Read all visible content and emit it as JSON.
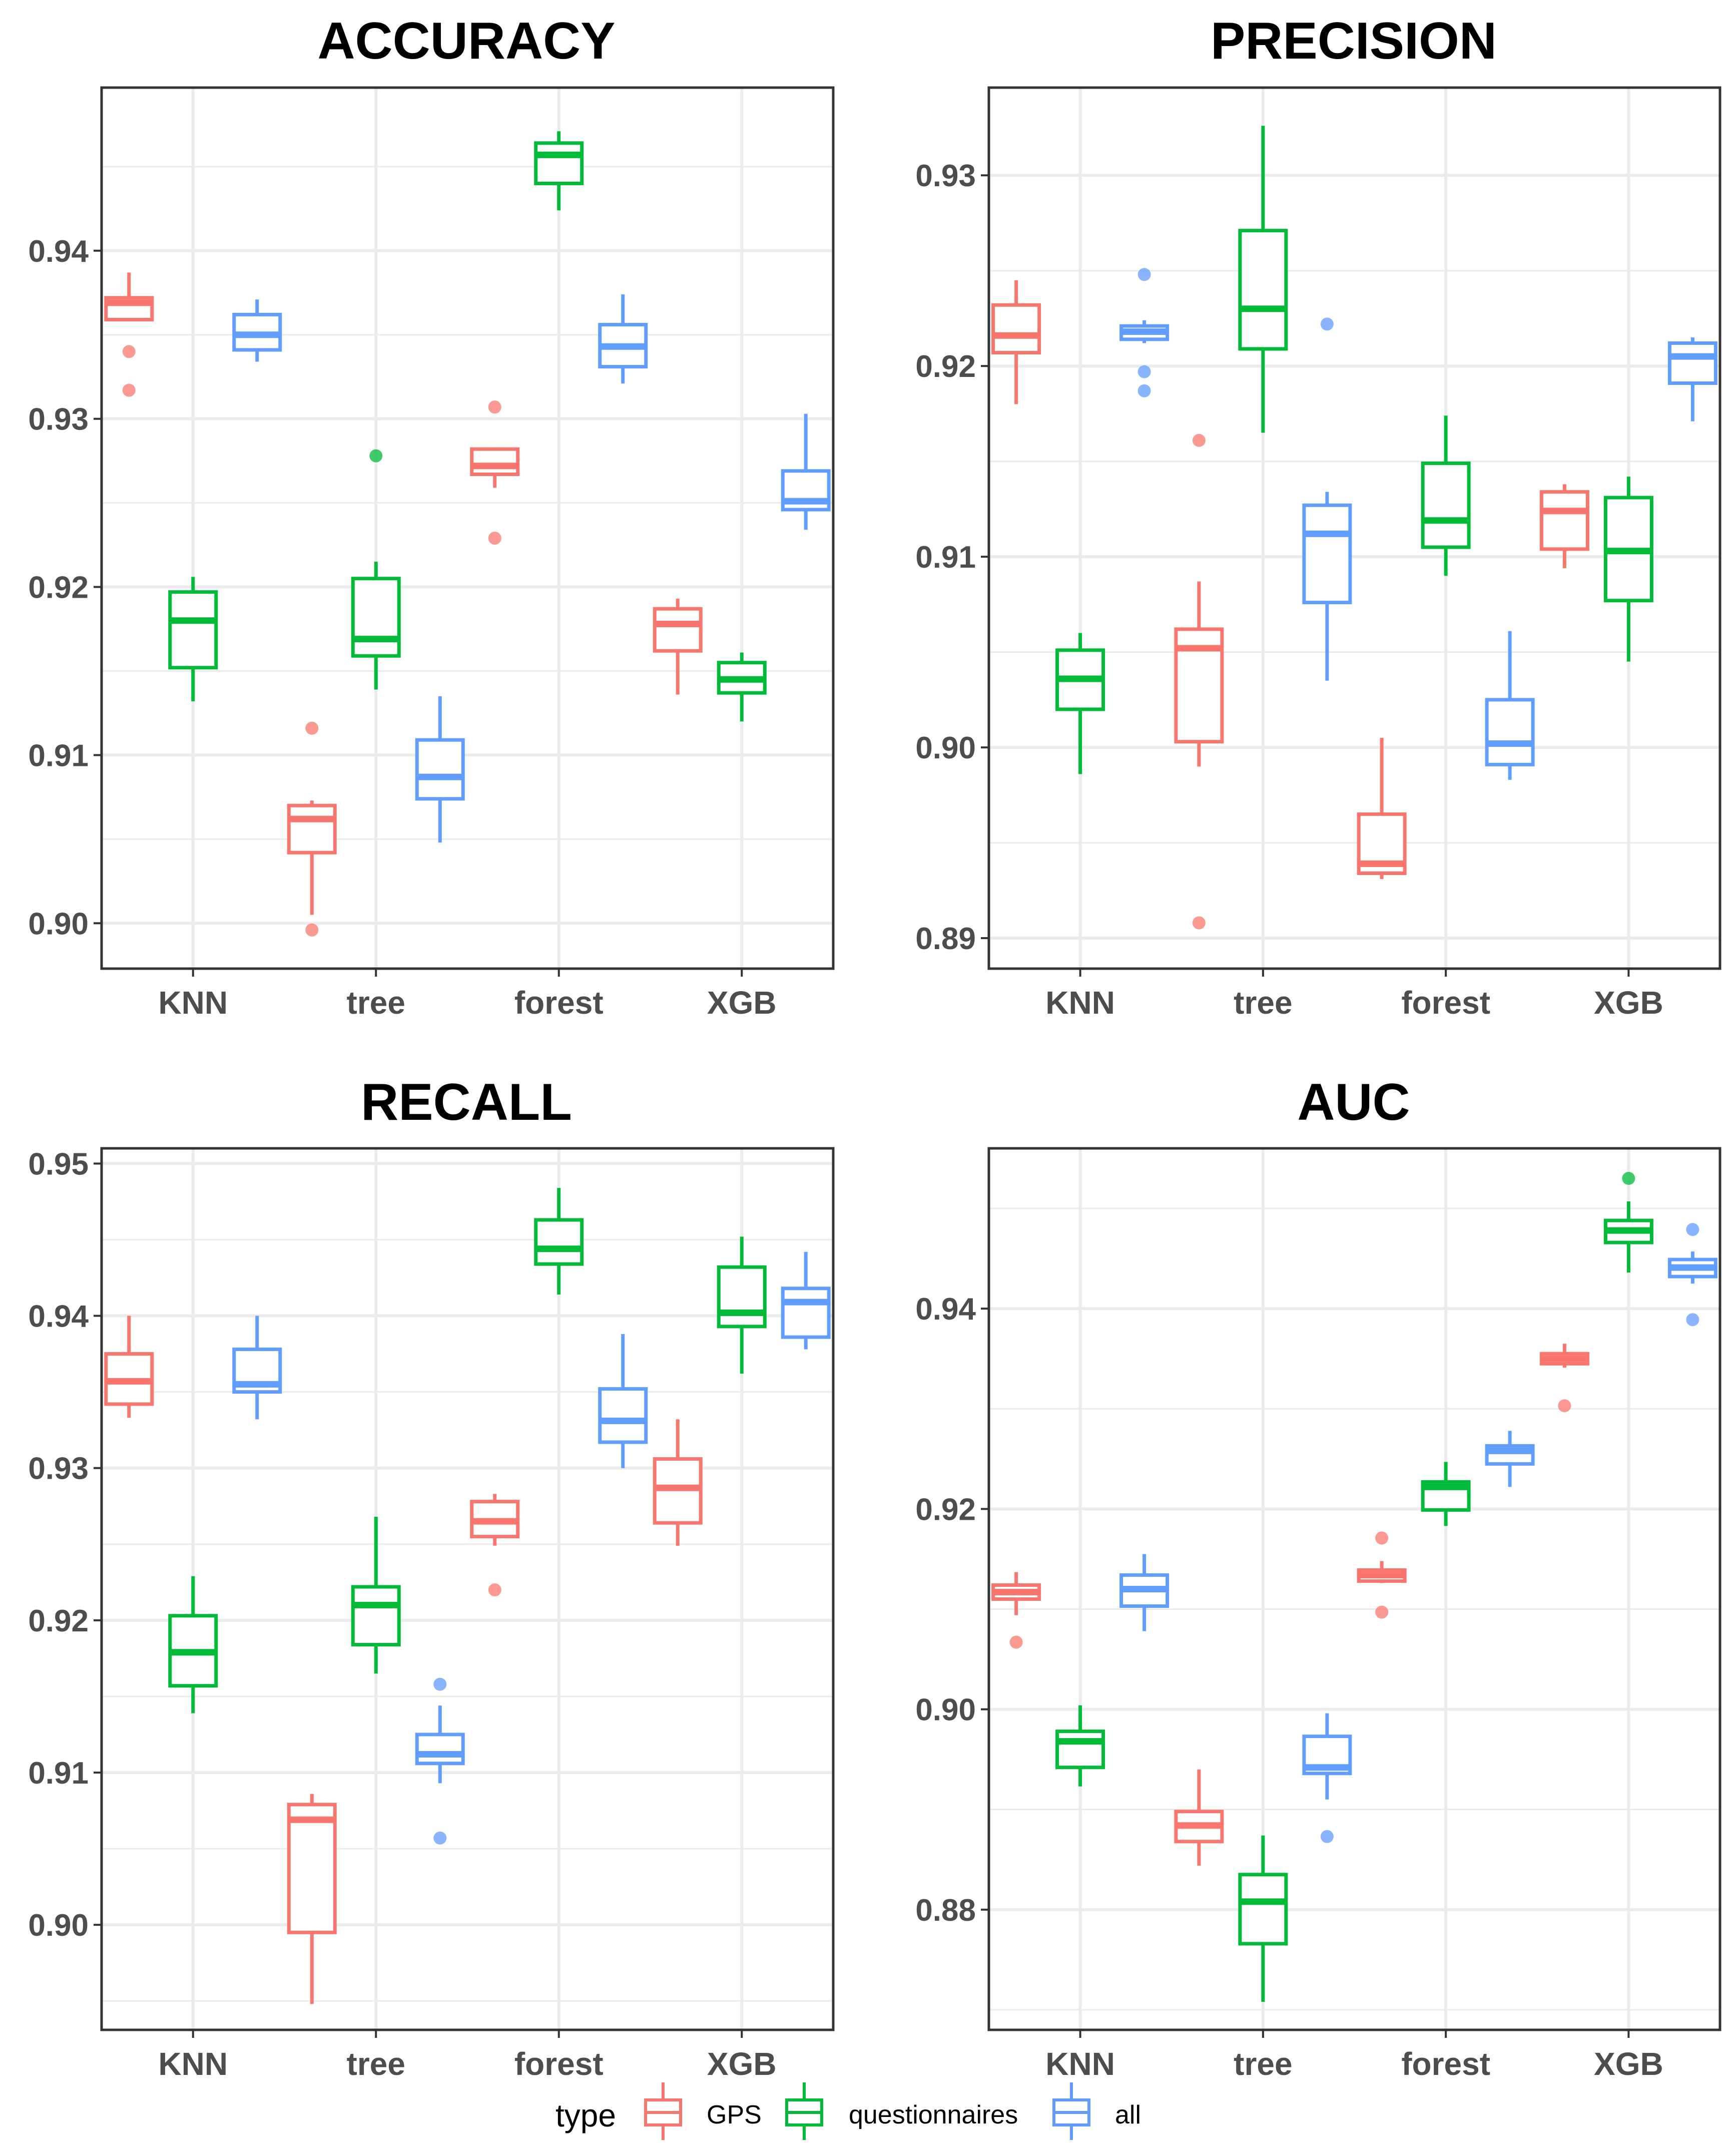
{
  "colors": {
    "GPS": "#F8766D",
    "questionnaires": "#00BA38",
    "all": "#619CFF",
    "grid": "#EBEBEB",
    "frame": "#333333"
  },
  "legend": {
    "title": "type",
    "items": [
      {
        "key": "GPS",
        "label": "GPS"
      },
      {
        "key": "questionnaires",
        "label": "questionnaires"
      },
      {
        "key": "all",
        "label": "all"
      }
    ]
  },
  "chart_data": [
    {
      "type": "boxplot",
      "title": "ACCURACY",
      "categories": [
        "KNN",
        "tree",
        "forest",
        "XGB"
      ],
      "ylim": [
        0.8973,
        0.9497
      ],
      "yticks": [
        0.9,
        0.91,
        0.92,
        0.93,
        0.94
      ],
      "ytick_labels": [
        "0.90",
        "0.91",
        "0.92",
        "0.93",
        "0.94"
      ],
      "series": [
        {
          "name": "GPS",
          "boxes": [
            {
              "min": 0.9359,
              "q1": 0.9359,
              "median": 0.9369,
              "q3": 0.9372,
              "max": 0.9387,
              "outliers": [
                0.934,
                0.9317
              ]
            },
            {
              "min": 0.9005,
              "q1": 0.9042,
              "median": 0.9062,
              "q3": 0.907,
              "max": 0.9073,
              "outliers": [
                0.9116,
                0.8996
              ]
            },
            {
              "min": 0.9259,
              "q1": 0.9267,
              "median": 0.9272,
              "q3": 0.9282,
              "max": 0.9283,
              "outliers": [
                0.9307,
                0.9229
              ]
            },
            {
              "min": 0.9136,
              "q1": 0.9162,
              "median": 0.9178,
              "q3": 0.9187,
              "max": 0.9193,
              "outliers": []
            }
          ]
        },
        {
          "name": "questionnaires",
          "boxes": [
            {
              "min": 0.9132,
              "q1": 0.9152,
              "median": 0.918,
              "q3": 0.9197,
              "max": 0.9206,
              "outliers": []
            },
            {
              "min": 0.9139,
              "q1": 0.9159,
              "median": 0.9169,
              "q3": 0.9205,
              "max": 0.9215,
              "outliers": [
                0.9278
              ]
            },
            {
              "min": 0.9424,
              "q1": 0.944,
              "median": 0.9457,
              "q3": 0.9464,
              "max": 0.9471,
              "outliers": []
            },
            {
              "min": 0.912,
              "q1": 0.9137,
              "median": 0.9145,
              "q3": 0.9155,
              "max": 0.9161,
              "outliers": []
            }
          ]
        },
        {
          "name": "all",
          "boxes": [
            {
              "min": 0.9334,
              "q1": 0.9341,
              "median": 0.935,
              "q3": 0.9362,
              "max": 0.9371,
              "outliers": []
            },
            {
              "min": 0.9048,
              "q1": 0.9074,
              "median": 0.9087,
              "q3": 0.9109,
              "max": 0.9135,
              "outliers": []
            },
            {
              "min": 0.9321,
              "q1": 0.9331,
              "median": 0.9343,
              "q3": 0.9356,
              "max": 0.9374,
              "outliers": []
            },
            {
              "min": 0.9234,
              "q1": 0.9246,
              "median": 0.9251,
              "q3": 0.9269,
              "max": 0.9303,
              "outliers": []
            }
          ]
        }
      ]
    },
    {
      "type": "boxplot",
      "title": "PRECISION",
      "categories": [
        "KNN",
        "tree",
        "forest",
        "XGB"
      ],
      "ylim": [
        0.8884,
        0.9346
      ],
      "yticks": [
        0.89,
        0.9,
        0.91,
        0.92,
        0.93
      ],
      "ytick_labels": [
        "0.89",
        "0.90",
        "0.91",
        "0.92",
        "0.93"
      ],
      "series": [
        {
          "name": "GPS",
          "boxes": [
            {
              "min": 0.918,
              "q1": 0.9207,
              "median": 0.9216,
              "q3": 0.9232,
              "max": 0.9245,
              "outliers": []
            },
            {
              "min": 0.899,
              "q1": 0.9003,
              "median": 0.9052,
              "q3": 0.9062,
              "max": 0.9087,
              "outliers": [
                0.9161,
                0.8908
              ]
            },
            {
              "min": 0.8931,
              "q1": 0.8934,
              "median": 0.8939,
              "q3": 0.8965,
              "max": 0.9005,
              "outliers": []
            },
            {
              "min": 0.9094,
              "q1": 0.9104,
              "median": 0.9124,
              "q3": 0.9134,
              "max": 0.9138,
              "outliers": []
            }
          ]
        },
        {
          "name": "questionnaires",
          "boxes": [
            {
              "min": 0.8986,
              "q1": 0.902,
              "median": 0.9036,
              "q3": 0.9051,
              "max": 0.906,
              "outliers": []
            },
            {
              "min": 0.9165,
              "q1": 0.9209,
              "median": 0.923,
              "q3": 0.9271,
              "max": 0.9326,
              "outliers": []
            },
            {
              "min": 0.909,
              "q1": 0.9105,
              "median": 0.9119,
              "q3": 0.9149,
              "max": 0.9174,
              "outliers": []
            },
            {
              "min": 0.9045,
              "q1": 0.9077,
              "median": 0.9103,
              "q3": 0.9131,
              "max": 0.9142,
              "outliers": []
            }
          ]
        },
        {
          "name": "all",
          "boxes": [
            {
              "min": 0.9212,
              "q1": 0.9214,
              "median": 0.9218,
              "q3": 0.9221,
              "max": 0.9224,
              "outliers": [
                0.9248,
                0.9197,
                0.9187
              ]
            },
            {
              "min": 0.9035,
              "q1": 0.9076,
              "median": 0.9112,
              "q3": 0.9127,
              "max": 0.9134,
              "outliers": [
                0.9222
              ]
            },
            {
              "min": 0.8983,
              "q1": 0.8991,
              "median": 0.9002,
              "q3": 0.9025,
              "max": 0.9061,
              "outliers": []
            },
            {
              "min": 0.9171,
              "q1": 0.9191,
              "median": 0.9205,
              "q3": 0.9212,
              "max": 0.9215,
              "outliers": []
            }
          ]
        }
      ]
    },
    {
      "type": "boxplot",
      "title": "RECALL",
      "categories": [
        "KNN",
        "tree",
        "forest",
        "XGB"
      ],
      "ylim": [
        0.8931,
        0.951
      ],
      "yticks": [
        0.9,
        0.91,
        0.92,
        0.93,
        0.94,
        0.95
      ],
      "ytick_labels": [
        "0.90",
        "0.91",
        "0.92",
        "0.93",
        "0.94",
        "0.95"
      ],
      "series": [
        {
          "name": "GPS",
          "boxes": [
            {
              "min": 0.9333,
              "q1": 0.9342,
              "median": 0.9357,
              "q3": 0.9375,
              "max": 0.94,
              "outliers": []
            },
            {
              "min": 0.8948,
              "q1": 0.8995,
              "median": 0.9069,
              "q3": 0.9079,
              "max": 0.9086,
              "outliers": []
            },
            {
              "min": 0.9249,
              "q1": 0.9255,
              "median": 0.9265,
              "q3": 0.9278,
              "max": 0.9283,
              "outliers": [
                0.922
              ]
            },
            {
              "min": 0.9249,
              "q1": 0.9264,
              "median": 0.9287,
              "q3": 0.9306,
              "max": 0.9332,
              "outliers": []
            }
          ]
        },
        {
          "name": "questionnaires",
          "boxes": [
            {
              "min": 0.9139,
              "q1": 0.9157,
              "median": 0.9179,
              "q3": 0.9203,
              "max": 0.9229,
              "outliers": []
            },
            {
              "min": 0.9165,
              "q1": 0.9184,
              "median": 0.921,
              "q3": 0.9222,
              "max": 0.9268,
              "outliers": []
            },
            {
              "min": 0.9414,
              "q1": 0.9434,
              "median": 0.9444,
              "q3": 0.9463,
              "max": 0.9484,
              "outliers": []
            },
            {
              "min": 0.9362,
              "q1": 0.9393,
              "median": 0.9402,
              "q3": 0.9432,
              "max": 0.9452,
              "outliers": []
            }
          ]
        },
        {
          "name": "all",
          "boxes": [
            {
              "min": 0.9332,
              "q1": 0.935,
              "median": 0.9355,
              "q3": 0.9378,
              "max": 0.94,
              "outliers": []
            },
            {
              "min": 0.9093,
              "q1": 0.9106,
              "median": 0.9112,
              "q3": 0.9125,
              "max": 0.9144,
              "outliers": [
                0.9158,
                0.9057
              ]
            },
            {
              "min": 0.93,
              "q1": 0.9317,
              "median": 0.9331,
              "q3": 0.9352,
              "max": 0.9388,
              "outliers": []
            },
            {
              "min": 0.9378,
              "q1": 0.9386,
              "median": 0.9409,
              "q3": 0.9418,
              "max": 0.9442,
              "outliers": []
            }
          ]
        }
      ]
    },
    {
      "type": "boxplot",
      "title": "AUC",
      "categories": [
        "KNN",
        "tree",
        "forest",
        "XGB"
      ],
      "ylim": [
        0.868,
        0.956
      ],
      "yticks": [
        0.88,
        0.9,
        0.92,
        0.94
      ],
      "ytick_labels": [
        "0.88",
        "0.90",
        "0.92",
        "0.94"
      ],
      "series": [
        {
          "name": "GPS",
          "boxes": [
            {
              "min": 0.9094,
              "q1": 0.911,
              "median": 0.9117,
              "q3": 0.9124,
              "max": 0.9137,
              "outliers": [
                0.9067
              ]
            },
            {
              "min": 0.8844,
              "q1": 0.8868,
              "median": 0.8884,
              "q3": 0.8898,
              "max": 0.894,
              "outliers": []
            },
            {
              "min": 0.9126,
              "q1": 0.9128,
              "median": 0.9134,
              "q3": 0.9139,
              "max": 0.9148,
              "outliers": [
                0.9171,
                0.9097
              ]
            },
            {
              "min": 0.9341,
              "q1": 0.9345,
              "median": 0.935,
              "q3": 0.9355,
              "max": 0.9365,
              "outliers": [
                0.9303
              ]
            }
          ]
        },
        {
          "name": "questionnaires",
          "boxes": [
            {
              "min": 0.8923,
              "q1": 0.8942,
              "median": 0.8968,
              "q3": 0.8978,
              "max": 0.9004,
              "outliers": []
            },
            {
              "min": 0.8708,
              "q1": 0.8766,
              "median": 0.8808,
              "q3": 0.8835,
              "max": 0.8874,
              "outliers": []
            },
            {
              "min": 0.9183,
              "q1": 0.9199,
              "median": 0.9222,
              "q3": 0.9227,
              "max": 0.9247,
              "outliers": []
            },
            {
              "min": 0.9436,
              "q1": 0.9466,
              "median": 0.9478,
              "q3": 0.9488,
              "max": 0.9507,
              "outliers": [
                0.953
              ]
            }
          ]
        },
        {
          "name": "all",
          "boxes": [
            {
              "min": 0.9078,
              "q1": 0.9103,
              "median": 0.912,
              "q3": 0.9134,
              "max": 0.9155,
              "outliers": []
            },
            {
              "min": 0.891,
              "q1": 0.8936,
              "median": 0.8942,
              "q3": 0.8973,
              "max": 0.8996,
              "outliers": [
                0.8873
              ]
            },
            {
              "min": 0.9222,
              "q1": 0.9245,
              "median": 0.9258,
              "q3": 0.9263,
              "max": 0.9278,
              "outliers": []
            },
            {
              "min": 0.9425,
              "q1": 0.9432,
              "median": 0.9441,
              "q3": 0.9449,
              "max": 0.9457,
              "outliers": [
                0.9479,
                0.9389
              ]
            }
          ]
        }
      ]
    }
  ]
}
